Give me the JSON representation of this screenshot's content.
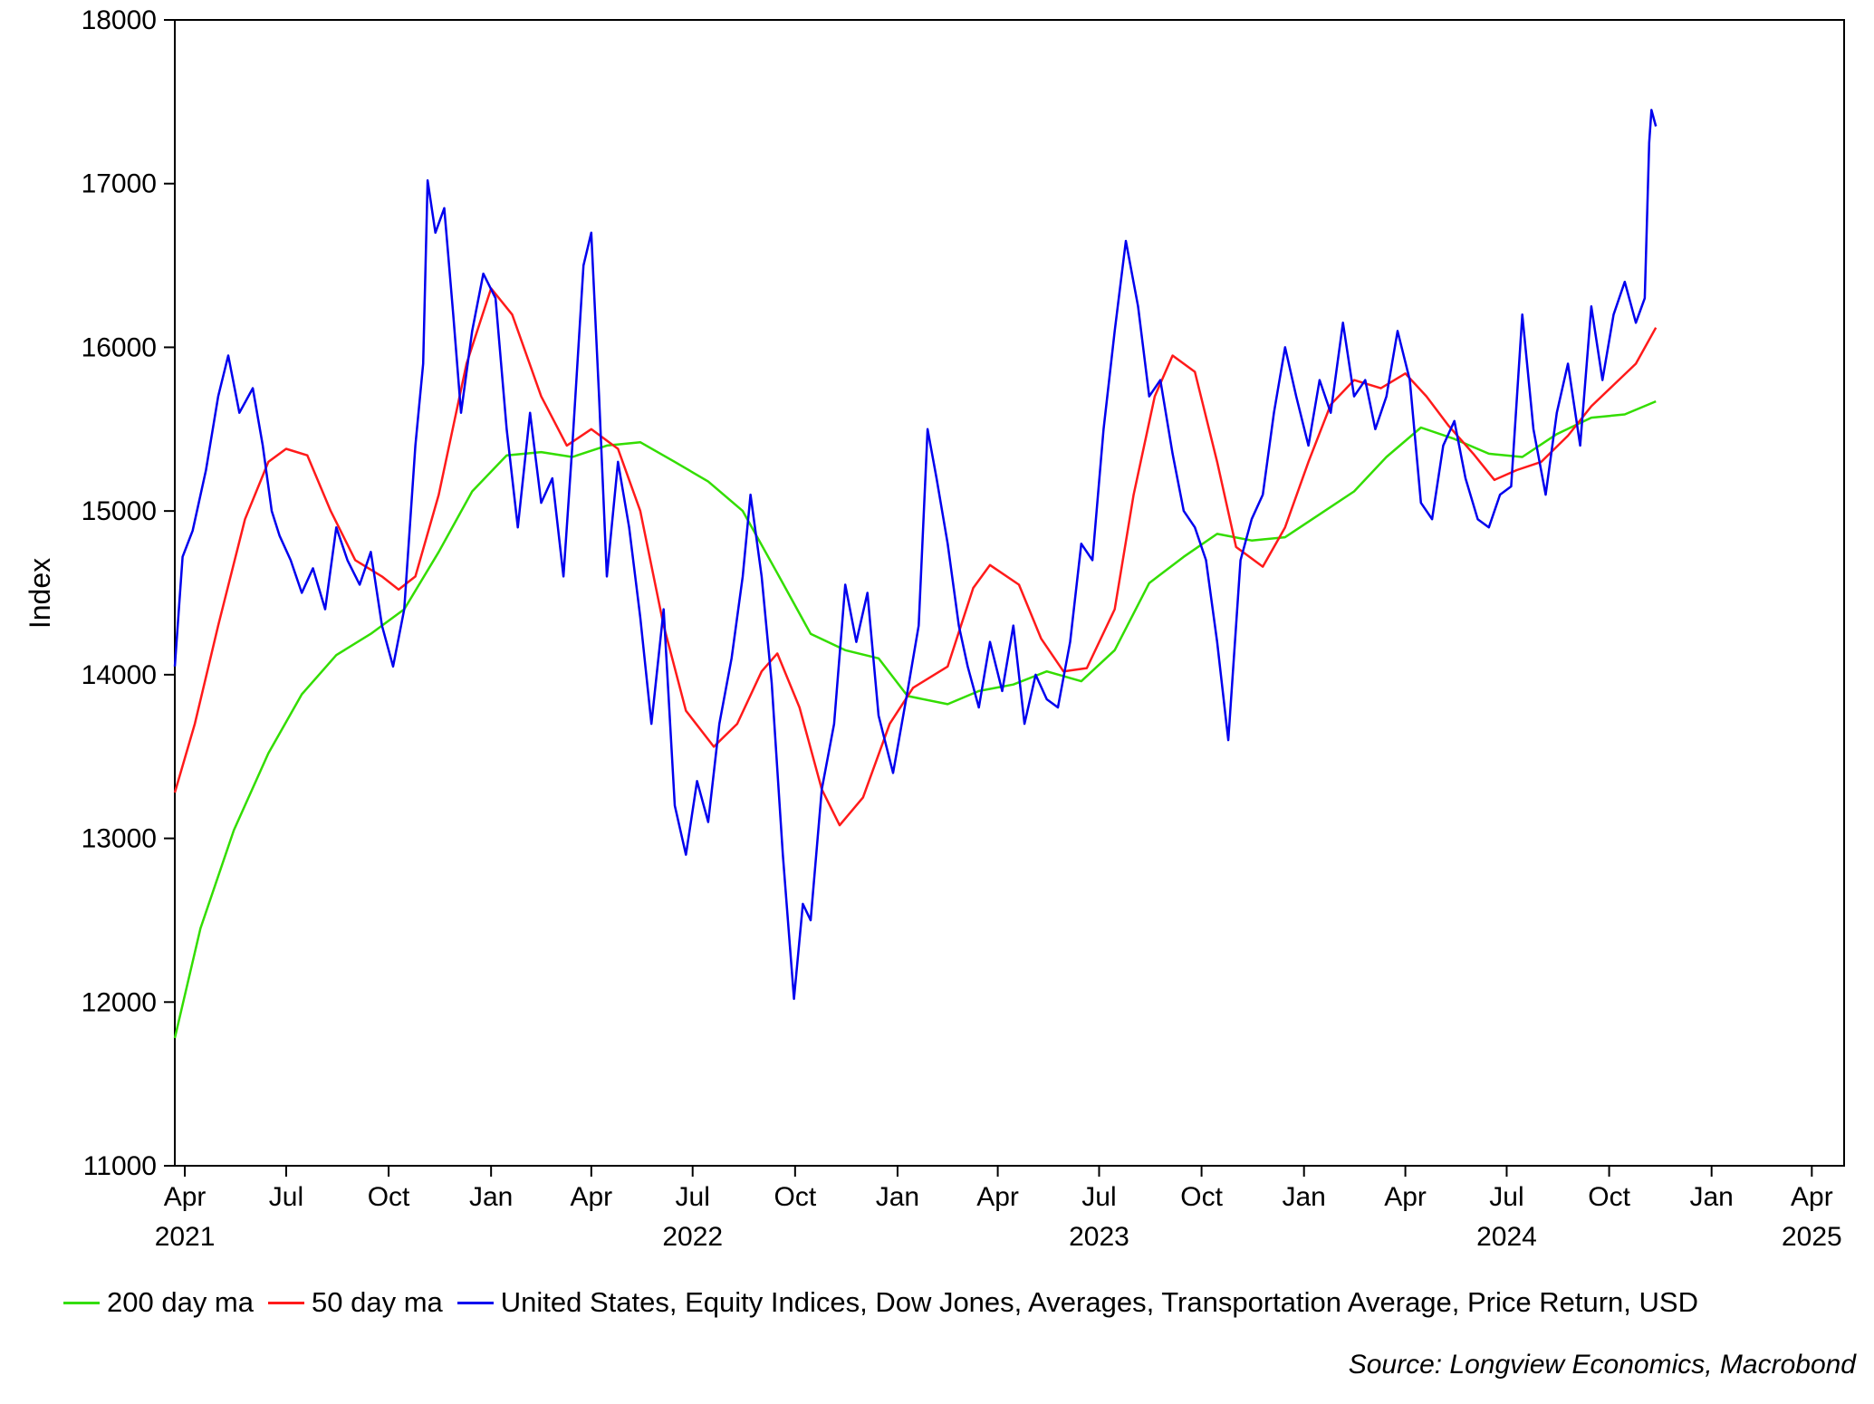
{
  "chart_data": {
    "type": "line",
    "ylabel": "Index",
    "ylim": [
      11000,
      18000
    ],
    "yticks": [
      11000,
      12000,
      13000,
      14000,
      15000,
      16000,
      17000,
      18000
    ],
    "xlim": [
      "2021-03-23",
      "2025-04-30"
    ],
    "xticks": [
      {
        "date": "2021-04-01",
        "label": "Apr",
        "year": "2021"
      },
      {
        "date": "2021-07-01",
        "label": "Jul",
        "year": ""
      },
      {
        "date": "2021-10-01",
        "label": "Oct",
        "year": ""
      },
      {
        "date": "2022-01-01",
        "label": "Jan",
        "year": ""
      },
      {
        "date": "2022-04-01",
        "label": "Apr",
        "year": ""
      },
      {
        "date": "2022-07-01",
        "label": "Jul",
        "year": "2022"
      },
      {
        "date": "2022-10-01",
        "label": "Oct",
        "year": ""
      },
      {
        "date": "2023-01-01",
        "label": "Jan",
        "year": ""
      },
      {
        "date": "2023-04-01",
        "label": "Apr",
        "year": ""
      },
      {
        "date": "2023-07-01",
        "label": "Jul",
        "year": "2023"
      },
      {
        "date": "2023-10-01",
        "label": "Oct",
        "year": ""
      },
      {
        "date": "2024-01-01",
        "label": "Jan",
        "year": ""
      },
      {
        "date": "2024-04-01",
        "label": "Apr",
        "year": ""
      },
      {
        "date": "2024-07-01",
        "label": "Jul",
        "year": "2024"
      },
      {
        "date": "2024-10-01",
        "label": "Oct",
        "year": ""
      },
      {
        "date": "2025-01-01",
        "label": "Jan",
        "year": ""
      },
      {
        "date": "2025-04-01",
        "label": "Apr",
        "year": "2025"
      }
    ],
    "grid": false,
    "legend_placement": "bottom",
    "series": [
      {
        "name": "200 day ma",
        "color": "#33dd00",
        "points": [
          [
            "2021-03-23",
            11780
          ],
          [
            "2021-04-15",
            12450
          ],
          [
            "2021-05-15",
            13050
          ],
          [
            "2021-06-15",
            13520
          ],
          [
            "2021-07-15",
            13880
          ],
          [
            "2021-08-15",
            14120
          ],
          [
            "2021-09-15",
            14250
          ],
          [
            "2021-10-15",
            14400
          ],
          [
            "2021-11-15",
            14750
          ],
          [
            "2021-12-15",
            15120
          ],
          [
            "2022-01-15",
            15340
          ],
          [
            "2022-02-15",
            15360
          ],
          [
            "2022-03-15",
            15330
          ],
          [
            "2022-04-15",
            15400
          ],
          [
            "2022-05-15",
            15420
          ],
          [
            "2022-06-15",
            15300
          ],
          [
            "2022-07-15",
            15180
          ],
          [
            "2022-08-15",
            15000
          ],
          [
            "2022-09-15",
            14620
          ],
          [
            "2022-10-15",
            14250
          ],
          [
            "2022-11-15",
            14150
          ],
          [
            "2022-12-15",
            14100
          ],
          [
            "2023-01-10",
            13870
          ],
          [
            "2023-02-15",
            13820
          ],
          [
            "2023-03-15",
            13900
          ],
          [
            "2023-04-15",
            13940
          ],
          [
            "2023-05-15",
            14020
          ],
          [
            "2023-06-15",
            13960
          ],
          [
            "2023-07-15",
            14150
          ],
          [
            "2023-08-15",
            14560
          ],
          [
            "2023-09-15",
            14720
          ],
          [
            "2023-10-15",
            14860
          ],
          [
            "2023-11-15",
            14820
          ],
          [
            "2023-12-15",
            14840
          ],
          [
            "2024-01-15",
            14980
          ],
          [
            "2024-02-15",
            15120
          ],
          [
            "2024-03-15",
            15330
          ],
          [
            "2024-04-15",
            15510
          ],
          [
            "2024-05-15",
            15440
          ],
          [
            "2024-06-15",
            15350
          ],
          [
            "2024-07-15",
            15330
          ],
          [
            "2024-08-15",
            15470
          ],
          [
            "2024-09-15",
            15570
          ],
          [
            "2024-10-15",
            15590
          ],
          [
            "2024-11-12",
            15670
          ]
        ]
      },
      {
        "name": "50 day ma",
        "color": "#ff1a1a",
        "points": [
          [
            "2021-03-23",
            13280
          ],
          [
            "2021-04-10",
            13700
          ],
          [
            "2021-05-01",
            14300
          ],
          [
            "2021-05-25",
            14950
          ],
          [
            "2021-06-15",
            15300
          ],
          [
            "2021-07-01",
            15380
          ],
          [
            "2021-07-20",
            15340
          ],
          [
            "2021-08-10",
            15000
          ],
          [
            "2021-09-01",
            14700
          ],
          [
            "2021-09-25",
            14600
          ],
          [
            "2021-10-10",
            14520
          ],
          [
            "2021-10-25",
            14600
          ],
          [
            "2021-11-15",
            15100
          ],
          [
            "2021-12-10",
            15900
          ],
          [
            "2022-01-01",
            16360
          ],
          [
            "2022-01-20",
            16200
          ],
          [
            "2022-02-15",
            15700
          ],
          [
            "2022-03-10",
            15400
          ],
          [
            "2022-04-01",
            15500
          ],
          [
            "2022-04-25",
            15380
          ],
          [
            "2022-05-15",
            15000
          ],
          [
            "2022-06-05",
            14300
          ],
          [
            "2022-06-25",
            13780
          ],
          [
            "2022-07-20",
            13560
          ],
          [
            "2022-08-10",
            13700
          ],
          [
            "2022-09-01",
            14020
          ],
          [
            "2022-09-15",
            14130
          ],
          [
            "2022-10-05",
            13800
          ],
          [
            "2022-10-25",
            13300
          ],
          [
            "2022-11-10",
            13080
          ],
          [
            "2022-12-01",
            13250
          ],
          [
            "2022-12-25",
            13700
          ],
          [
            "2023-01-15",
            13920
          ],
          [
            "2023-02-15",
            14050
          ],
          [
            "2023-03-10",
            14530
          ],
          [
            "2023-03-25",
            14670
          ],
          [
            "2023-04-20",
            14550
          ],
          [
            "2023-05-10",
            14220
          ],
          [
            "2023-05-30",
            14020
          ],
          [
            "2023-06-20",
            14040
          ],
          [
            "2023-07-15",
            14400
          ],
          [
            "2023-08-01",
            15100
          ],
          [
            "2023-08-20",
            15700
          ],
          [
            "2023-09-05",
            15950
          ],
          [
            "2023-09-25",
            15850
          ],
          [
            "2023-10-15",
            15300
          ],
          [
            "2023-11-01",
            14780
          ],
          [
            "2023-11-25",
            14660
          ],
          [
            "2023-12-15",
            14900
          ],
          [
            "2024-01-05",
            15300
          ],
          [
            "2024-01-25",
            15650
          ],
          [
            "2024-02-15",
            15800
          ],
          [
            "2024-03-10",
            15750
          ],
          [
            "2024-04-01",
            15840
          ],
          [
            "2024-04-20",
            15700
          ],
          [
            "2024-05-10",
            15520
          ],
          [
            "2024-06-01",
            15350
          ],
          [
            "2024-06-20",
            15190
          ],
          [
            "2024-07-10",
            15250
          ],
          [
            "2024-08-01",
            15300
          ],
          [
            "2024-08-25",
            15460
          ],
          [
            "2024-09-15",
            15640
          ],
          [
            "2024-10-05",
            15770
          ],
          [
            "2024-10-25",
            15900
          ],
          [
            "2024-11-12",
            16120
          ]
        ]
      },
      {
        "name": "United States, Equity Indices, Dow Jones, Averages, Transportation Average, Price Return, USD",
        "color": "#0000ee",
        "points": [
          [
            "2021-03-23",
            14050
          ],
          [
            "2021-03-30",
            14720
          ],
          [
            "2021-04-08",
            14880
          ],
          [
            "2021-04-20",
            15250
          ],
          [
            "2021-05-01",
            15700
          ],
          [
            "2021-05-10",
            15950
          ],
          [
            "2021-05-20",
            15600
          ],
          [
            "2021-06-01",
            15750
          ],
          [
            "2021-06-10",
            15400
          ],
          [
            "2021-06-18",
            15000
          ],
          [
            "2021-06-25",
            14850
          ],
          [
            "2021-07-05",
            14700
          ],
          [
            "2021-07-15",
            14500
          ],
          [
            "2021-07-25",
            14650
          ],
          [
            "2021-08-05",
            14400
          ],
          [
            "2021-08-15",
            14900
          ],
          [
            "2021-08-25",
            14700
          ],
          [
            "2021-09-05",
            14550
          ],
          [
            "2021-09-15",
            14750
          ],
          [
            "2021-09-25",
            14300
          ],
          [
            "2021-10-05",
            14050
          ],
          [
            "2021-10-15",
            14400
          ],
          [
            "2021-10-25",
            15400
          ],
          [
            "2021-11-01",
            15900
          ],
          [
            "2021-11-05",
            17020
          ],
          [
            "2021-11-12",
            16700
          ],
          [
            "2021-11-20",
            16850
          ],
          [
            "2021-11-28",
            16200
          ],
          [
            "2021-12-05",
            15600
          ],
          [
            "2021-12-15",
            16100
          ],
          [
            "2021-12-25",
            16450
          ],
          [
            "2022-01-05",
            16300
          ],
          [
            "2022-01-15",
            15500
          ],
          [
            "2022-01-25",
            14900
          ],
          [
            "2022-02-05",
            15600
          ],
          [
            "2022-02-15",
            15050
          ],
          [
            "2022-02-25",
            15200
          ],
          [
            "2022-03-07",
            14600
          ],
          [
            "2022-03-15",
            15400
          ],
          [
            "2022-03-25",
            16500
          ],
          [
            "2022-04-01",
            16700
          ],
          [
            "2022-04-08",
            15700
          ],
          [
            "2022-04-15",
            14600
          ],
          [
            "2022-04-25",
            15300
          ],
          [
            "2022-05-05",
            14900
          ],
          [
            "2022-05-15",
            14350
          ],
          [
            "2022-05-25",
            13700
          ],
          [
            "2022-06-05",
            14400
          ],
          [
            "2022-06-15",
            13200
          ],
          [
            "2022-06-25",
            12900
          ],
          [
            "2022-07-05",
            13350
          ],
          [
            "2022-07-15",
            13100
          ],
          [
            "2022-07-25",
            13700
          ],
          [
            "2022-08-05",
            14100
          ],
          [
            "2022-08-15",
            14600
          ],
          [
            "2022-08-22",
            15100
          ],
          [
            "2022-09-01",
            14600
          ],
          [
            "2022-09-10",
            13950
          ],
          [
            "2022-09-20",
            12900
          ],
          [
            "2022-09-30",
            12020
          ],
          [
            "2022-10-08",
            12600
          ],
          [
            "2022-10-15",
            12500
          ],
          [
            "2022-10-25",
            13300
          ],
          [
            "2022-11-05",
            13700
          ],
          [
            "2022-11-15",
            14550
          ],
          [
            "2022-11-25",
            14200
          ],
          [
            "2022-12-05",
            14500
          ],
          [
            "2022-12-15",
            13750
          ],
          [
            "2022-12-28",
            13400
          ],
          [
            "2023-01-10",
            13900
          ],
          [
            "2023-01-20",
            14300
          ],
          [
            "2023-01-28",
            15500
          ],
          [
            "2023-02-05",
            15200
          ],
          [
            "2023-02-15",
            14800
          ],
          [
            "2023-02-25",
            14300
          ],
          [
            "2023-03-05",
            14050
          ],
          [
            "2023-03-15",
            13800
          ],
          [
            "2023-03-25",
            14200
          ],
          [
            "2023-04-05",
            13900
          ],
          [
            "2023-04-15",
            14300
          ],
          [
            "2023-04-25",
            13700
          ],
          [
            "2023-05-05",
            14000
          ],
          [
            "2023-05-15",
            13850
          ],
          [
            "2023-05-25",
            13800
          ],
          [
            "2023-06-05",
            14200
          ],
          [
            "2023-06-15",
            14800
          ],
          [
            "2023-06-25",
            14700
          ],
          [
            "2023-07-05",
            15500
          ],
          [
            "2023-07-15",
            16100
          ],
          [
            "2023-07-25",
            16650
          ],
          [
            "2023-08-05",
            16250
          ],
          [
            "2023-08-15",
            15700
          ],
          [
            "2023-08-25",
            15800
          ],
          [
            "2023-09-05",
            15350
          ],
          [
            "2023-09-15",
            15000
          ],
          [
            "2023-09-25",
            14900
          ],
          [
            "2023-10-05",
            14700
          ],
          [
            "2023-10-15",
            14200
          ],
          [
            "2023-10-25",
            13600
          ],
          [
            "2023-11-05",
            14700
          ],
          [
            "2023-11-15",
            14950
          ],
          [
            "2023-11-25",
            15100
          ],
          [
            "2023-12-05",
            15600
          ],
          [
            "2023-12-15",
            16000
          ],
          [
            "2023-12-25",
            15700
          ],
          [
            "2024-01-05",
            15400
          ],
          [
            "2024-01-15",
            15800
          ],
          [
            "2024-01-25",
            15600
          ],
          [
            "2024-02-05",
            16150
          ],
          [
            "2024-02-15",
            15700
          ],
          [
            "2024-02-25",
            15800
          ],
          [
            "2024-03-05",
            15500
          ],
          [
            "2024-03-15",
            15700
          ],
          [
            "2024-03-25",
            16100
          ],
          [
            "2024-04-05",
            15800
          ],
          [
            "2024-04-15",
            15050
          ],
          [
            "2024-04-25",
            14950
          ],
          [
            "2024-05-05",
            15400
          ],
          [
            "2024-05-15",
            15550
          ],
          [
            "2024-05-25",
            15200
          ],
          [
            "2024-06-05",
            14950
          ],
          [
            "2024-06-15",
            14900
          ],
          [
            "2024-06-25",
            15100
          ],
          [
            "2024-07-05",
            15150
          ],
          [
            "2024-07-15",
            16200
          ],
          [
            "2024-07-25",
            15500
          ],
          [
            "2024-08-05",
            15100
          ],
          [
            "2024-08-15",
            15600
          ],
          [
            "2024-08-25",
            15900
          ],
          [
            "2024-09-05",
            15400
          ],
          [
            "2024-09-15",
            16250
          ],
          [
            "2024-09-25",
            15800
          ],
          [
            "2024-10-05",
            16200
          ],
          [
            "2024-10-15",
            16400
          ],
          [
            "2024-10-25",
            16150
          ],
          [
            "2024-11-02",
            16300
          ],
          [
            "2024-11-06",
            17250
          ],
          [
            "2024-11-08",
            17450
          ],
          [
            "2024-11-12",
            17350
          ]
        ]
      }
    ]
  },
  "source": "Source: Longview Economics, Macrobond"
}
